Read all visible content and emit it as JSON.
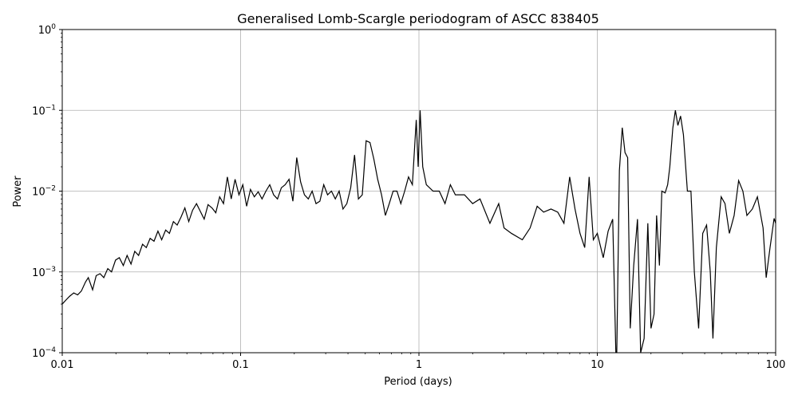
{
  "chart_data": {
    "type": "line",
    "title": "Generalised Lomb-Scargle periodogram of ASCC 838405",
    "xlabel": "Period (days)",
    "ylabel": "Power",
    "x_scale": "log",
    "y_scale": "log",
    "xlim": [
      0.01,
      100
    ],
    "ylim": [
      0.0001,
      1
    ],
    "grid": true,
    "line_color": "#000000",
    "x_ticks": [
      {
        "value": 0.01,
        "label": "0.01"
      },
      {
        "value": 0.1,
        "label": "0.1"
      },
      {
        "value": 1,
        "label": "1"
      },
      {
        "value": 10,
        "label": "10"
      },
      {
        "value": 100,
        "label": "100"
      }
    ],
    "y_ticks": [
      {
        "value": 0.0001,
        "base": "10",
        "exp": "−4"
      },
      {
        "value": 0.001,
        "base": "10",
        "exp": "−3"
      },
      {
        "value": 0.01,
        "base": "10",
        "exp": "−2"
      },
      {
        "value": 0.1,
        "base": "10",
        "exp": "−1"
      },
      {
        "value": 1,
        "base": "10",
        "exp": "0"
      }
    ],
    "series": [
      {
        "points": [
          [
            0.01,
            0.0004
          ],
          [
            0.0105,
            0.00045
          ],
          [
            0.011,
            0.0005
          ],
          [
            0.0116,
            0.00055
          ],
          [
            0.0122,
            0.00052
          ],
          [
            0.0128,
            0.00058
          ],
          [
            0.0135,
            0.00075
          ],
          [
            0.014,
            0.00085
          ],
          [
            0.0148,
            0.0006
          ],
          [
            0.0155,
            0.0009
          ],
          [
            0.0163,
            0.00095
          ],
          [
            0.0171,
            0.00085
          ],
          [
            0.018,
            0.0011
          ],
          [
            0.0189,
            0.001
          ],
          [
            0.0199,
            0.0014
          ],
          [
            0.0209,
            0.0015
          ],
          [
            0.022,
            0.0012
          ],
          [
            0.0231,
            0.0016
          ],
          [
            0.0243,
            0.00125
          ],
          [
            0.0255,
            0.0018
          ],
          [
            0.0268,
            0.0016
          ],
          [
            0.0282,
            0.0022
          ],
          [
            0.0296,
            0.002
          ],
          [
            0.0311,
            0.0026
          ],
          [
            0.0327,
            0.0024
          ],
          [
            0.0344,
            0.0032
          ],
          [
            0.0361,
            0.0025
          ],
          [
            0.038,
            0.0033
          ],
          [
            0.0399,
            0.003
          ],
          [
            0.042,
            0.0042
          ],
          [
            0.0441,
            0.0038
          ],
          [
            0.0464,
            0.0048
          ],
          [
            0.0487,
            0.0062
          ],
          [
            0.0512,
            0.0042
          ],
          [
            0.0538,
            0.0058
          ],
          [
            0.0566,
            0.007
          ],
          [
            0.0595,
            0.0056
          ],
          [
            0.0625,
            0.0045
          ],
          [
            0.0657,
            0.0068
          ],
          [
            0.0691,
            0.0062
          ],
          [
            0.0726,
            0.0054
          ],
          [
            0.0763,
            0.0085
          ],
          [
            0.0802,
            0.007
          ],
          [
            0.0843,
            0.015
          ],
          [
            0.0886,
            0.008
          ],
          [
            0.0931,
            0.014
          ],
          [
            0.0979,
            0.009
          ],
          [
            0.1029,
            0.012
          ],
          [
            0.1081,
            0.0065
          ],
          [
            0.1136,
            0.0105
          ],
          [
            0.1194,
            0.0085
          ],
          [
            0.1255,
            0.0098
          ],
          [
            0.1319,
            0.008
          ],
          [
            0.1387,
            0.01
          ],
          [
            0.1457,
            0.012
          ],
          [
            0.1532,
            0.009
          ],
          [
            0.161,
            0.008
          ],
          [
            0.1692,
            0.011
          ],
          [
            0.1778,
            0.012
          ],
          [
            0.1869,
            0.014
          ],
          [
            0.1964,
            0.0075
          ],
          [
            0.2064,
            0.026
          ],
          [
            0.217,
            0.013
          ],
          [
            0.228,
            0.009
          ],
          [
            0.2397,
            0.008
          ],
          [
            0.2519,
            0.01
          ],
          [
            0.2648,
            0.007
          ],
          [
            0.2783,
            0.0075
          ],
          [
            0.2925,
            0.012
          ],
          [
            0.3074,
            0.009
          ],
          [
            0.3231,
            0.01
          ],
          [
            0.3396,
            0.008
          ],
          [
            0.3569,
            0.01
          ],
          [
            0.3751,
            0.006
          ],
          [
            0.3942,
            0.007
          ],
          [
            0.4143,
            0.011
          ],
          [
            0.4355,
            0.028
          ],
          [
            0.4577,
            0.008
          ],
          [
            0.4811,
            0.009
          ],
          [
            0.5056,
            0.042
          ],
          [
            0.5314,
            0.04
          ],
          [
            0.5585,
            0.025
          ],
          [
            0.587,
            0.014
          ],
          [
            0.617,
            0.009
          ],
          [
            0.6485,
            0.005
          ],
          [
            0.6816,
            0.007
          ],
          [
            0.7164,
            0.01
          ],
          [
            0.7529,
            0.01
          ],
          [
            0.7913,
            0.007
          ],
          [
            0.8317,
            0.01
          ],
          [
            0.8741,
            0.015
          ],
          [
            0.9187,
            0.012
          ],
          [
            0.9656,
            0.076
          ],
          [
            0.99,
            0.02
          ],
          [
            1.015,
            0.1
          ],
          [
            1.05,
            0.02
          ],
          [
            1.1,
            0.012
          ],
          [
            1.2,
            0.01
          ],
          [
            1.3,
            0.01
          ],
          [
            1.4,
            0.007
          ],
          [
            1.5,
            0.012
          ],
          [
            1.6,
            0.009
          ],
          [
            1.8,
            0.009
          ],
          [
            2.0,
            0.007
          ],
          [
            2.2,
            0.008
          ],
          [
            2.5,
            0.004
          ],
          [
            2.8,
            0.007
          ],
          [
            3.0,
            0.0035
          ],
          [
            3.3,
            0.003
          ],
          [
            3.8,
            0.0025
          ],
          [
            4.2,
            0.0035
          ],
          [
            4.6,
            0.0065
          ],
          [
            5.0,
            0.0055
          ],
          [
            5.5,
            0.006
          ],
          [
            6.0,
            0.0055
          ],
          [
            6.5,
            0.004
          ],
          [
            7.0,
            0.015
          ],
          [
            7.5,
            0.006
          ],
          [
            8.0,
            0.003
          ],
          [
            8.5,
            0.002
          ],
          [
            9.0,
            0.015
          ],
          [
            9.5,
            0.0025
          ],
          [
            10.0,
            0.003
          ],
          [
            10.8,
            0.0015
          ],
          [
            11.5,
            0.0032
          ],
          [
            12.2,
            0.0045
          ],
          [
            12.8,
            1e-05
          ],
          [
            13.3,
            0.018
          ],
          [
            13.8,
            0.061
          ],
          [
            14.3,
            0.03
          ],
          [
            14.8,
            0.026
          ],
          [
            15.3,
            0.0002
          ],
          [
            16.0,
            0.0012
          ],
          [
            16.8,
            0.0045
          ],
          [
            17.5,
            0.0001
          ],
          [
            18.3,
            0.00015
          ],
          [
            19.2,
            0.004
          ],
          [
            20.0,
            0.0002
          ],
          [
            20.8,
            0.0003
          ],
          [
            21.5,
            0.005
          ],
          [
            22.3,
            0.0012
          ],
          [
            23.0,
            0.01
          ],
          [
            24.0,
            0.0095
          ],
          [
            24.8,
            0.012
          ],
          [
            25.5,
            0.02
          ],
          [
            26.5,
            0.06
          ],
          [
            27.4,
            0.1
          ],
          [
            28.3,
            0.065
          ],
          [
            29.3,
            0.085
          ],
          [
            30.4,
            0.05
          ],
          [
            32.0,
            0.01
          ],
          [
            33.5,
            0.01
          ],
          [
            35.0,
            0.001
          ],
          [
            37.0,
            0.0002
          ],
          [
            39.0,
            0.003
          ],
          [
            41.0,
            0.0038
          ],
          [
            43.0,
            0.001
          ],
          [
            44.5,
            0.00015
          ],
          [
            46.5,
            0.002
          ],
          [
            49.5,
            0.0085
          ],
          [
            52.0,
            0.007
          ],
          [
            55.0,
            0.003
          ],
          [
            58.5,
            0.005
          ],
          [
            62.0,
            0.0135
          ],
          [
            65.5,
            0.01
          ],
          [
            69.0,
            0.005
          ],
          [
            74.0,
            0.006
          ],
          [
            79.0,
            0.0085
          ],
          [
            85.0,
            0.0035
          ],
          [
            88.5,
            0.00085
          ],
          [
            93.0,
            0.002
          ],
          [
            98.0,
            0.0046
          ],
          [
            100.0,
            0.004
          ]
        ]
      }
    ]
  }
}
